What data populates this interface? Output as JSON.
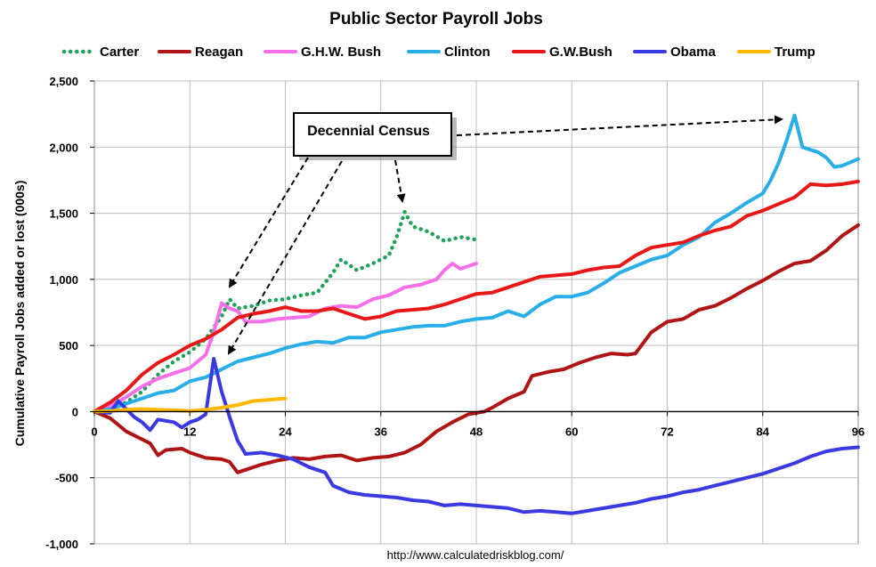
{
  "chart_data": {
    "type": "line",
    "title": "Public Sector Payroll Jobs",
    "ylabel": "Cumulative Payroll Jobs added or lost (000s)",
    "xlabel": "",
    "source": "http://www.calculatedriskblog.com/",
    "xlim": [
      0,
      96
    ],
    "ylim": [
      -1000,
      2500
    ],
    "x_ticks": [
      0,
      12,
      24,
      36,
      48,
      60,
      72,
      84,
      96
    ],
    "y_ticks": [
      -1000,
      -500,
      0,
      500,
      1000,
      1500,
      2000,
      2500
    ],
    "y_tick_labels": [
      "-1,000",
      "-500",
      "0",
      "500",
      "1,000",
      "1,500",
      "2,000",
      "2,500"
    ],
    "grid": true,
    "legend_position": "top",
    "annotation": {
      "text": "Decennial Census"
    },
    "series": [
      {
        "name": "Carter",
        "color": "#1fa35a",
        "style": "dotted",
        "points": [
          [
            0,
            0
          ],
          [
            2,
            20
          ],
          [
            4,
            70
          ],
          [
            6,
            150
          ],
          [
            8,
            280
          ],
          [
            10,
            380
          ],
          [
            12,
            450
          ],
          [
            14,
            550
          ],
          [
            16,
            720
          ],
          [
            17,
            850
          ],
          [
            18,
            780
          ],
          [
            20,
            800
          ],
          [
            22,
            840
          ],
          [
            24,
            850
          ],
          [
            26,
            880
          ],
          [
            28,
            900
          ],
          [
            30,
            1050
          ],
          [
            31,
            1150
          ],
          [
            33,
            1070
          ],
          [
            35,
            1120
          ],
          [
            37,
            1180
          ],
          [
            38,
            1320
          ],
          [
            39,
            1510
          ],
          [
            40,
            1400
          ],
          [
            42,
            1360
          ],
          [
            44,
            1290
          ],
          [
            46,
            1320
          ],
          [
            48,
            1300
          ]
        ]
      },
      {
        "name": "Reagan",
        "color": "#b01515",
        "style": "solid",
        "points": [
          [
            0,
            0
          ],
          [
            2,
            -50
          ],
          [
            4,
            -150
          ],
          [
            6,
            -210
          ],
          [
            7,
            -240
          ],
          [
            8,
            -330
          ],
          [
            9,
            -290
          ],
          [
            11,
            -280
          ],
          [
            12,
            -310
          ],
          [
            14,
            -350
          ],
          [
            16,
            -360
          ],
          [
            17,
            -380
          ],
          [
            18,
            -460
          ],
          [
            19,
            -440
          ],
          [
            21,
            -400
          ],
          [
            23,
            -370
          ],
          [
            25,
            -350
          ],
          [
            27,
            -360
          ],
          [
            29,
            -340
          ],
          [
            31,
            -330
          ],
          [
            33,
            -370
          ],
          [
            35,
            -350
          ],
          [
            37,
            -340
          ],
          [
            39,
            -310
          ],
          [
            41,
            -250
          ],
          [
            43,
            -150
          ],
          [
            45,
            -80
          ],
          [
            47,
            -20
          ],
          [
            49,
            0
          ],
          [
            50,
            30
          ],
          [
            52,
            100
          ],
          [
            54,
            150
          ],
          [
            55,
            270
          ],
          [
            57,
            300
          ],
          [
            59,
            320
          ],
          [
            61,
            370
          ],
          [
            63,
            410
          ],
          [
            65,
            440
          ],
          [
            67,
            430
          ],
          [
            68,
            440
          ],
          [
            69,
            520
          ],
          [
            70,
            600
          ],
          [
            72,
            680
          ],
          [
            74,
            700
          ],
          [
            76,
            770
          ],
          [
            78,
            800
          ],
          [
            80,
            860
          ],
          [
            82,
            930
          ],
          [
            84,
            990
          ],
          [
            86,
            1060
          ],
          [
            88,
            1120
          ],
          [
            90,
            1140
          ],
          [
            92,
            1220
          ],
          [
            94,
            1330
          ],
          [
            96,
            1410
          ]
        ]
      },
      {
        "name": "G.H.W. Bush",
        "color": "#f570e8",
        "style": "solid",
        "points": [
          [
            0,
            0
          ],
          [
            2,
            40
          ],
          [
            4,
            110
          ],
          [
            6,
            190
          ],
          [
            8,
            250
          ],
          [
            10,
            290
          ],
          [
            12,
            330
          ],
          [
            14,
            430
          ],
          [
            15,
            600
          ],
          [
            16,
            820
          ],
          [
            17,
            780
          ],
          [
            18,
            760
          ],
          [
            19,
            680
          ],
          [
            21,
            680
          ],
          [
            23,
            700
          ],
          [
            25,
            710
          ],
          [
            27,
            720
          ],
          [
            29,
            780
          ],
          [
            31,
            800
          ],
          [
            33,
            790
          ],
          [
            35,
            850
          ],
          [
            37,
            880
          ],
          [
            39,
            940
          ],
          [
            41,
            960
          ],
          [
            43,
            1000
          ],
          [
            44,
            1070
          ],
          [
            45,
            1120
          ],
          [
            46,
            1080
          ],
          [
            48,
            1120
          ]
        ]
      },
      {
        "name": "Clinton",
        "color": "#2aaee8",
        "style": "solid",
        "points": [
          [
            0,
            0
          ],
          [
            2,
            20
          ],
          [
            4,
            60
          ],
          [
            6,
            100
          ],
          [
            8,
            140
          ],
          [
            10,
            160
          ],
          [
            12,
            230
          ],
          [
            14,
            260
          ],
          [
            16,
            320
          ],
          [
            18,
            380
          ],
          [
            20,
            410
          ],
          [
            22,
            440
          ],
          [
            24,
            480
          ],
          [
            26,
            510
          ],
          [
            28,
            530
          ],
          [
            30,
            520
          ],
          [
            32,
            560
          ],
          [
            34,
            560
          ],
          [
            36,
            600
          ],
          [
            38,
            620
          ],
          [
            40,
            640
          ],
          [
            42,
            650
          ],
          [
            44,
            650
          ],
          [
            46,
            680
          ],
          [
            48,
            700
          ],
          [
            50,
            710
          ],
          [
            52,
            760
          ],
          [
            54,
            720
          ],
          [
            56,
            810
          ],
          [
            58,
            870
          ],
          [
            60,
            870
          ],
          [
            62,
            900
          ],
          [
            64,
            970
          ],
          [
            66,
            1050
          ],
          [
            68,
            1100
          ],
          [
            70,
            1150
          ],
          [
            72,
            1180
          ],
          [
            74,
            1260
          ],
          [
            76,
            1320
          ],
          [
            78,
            1430
          ],
          [
            80,
            1500
          ],
          [
            82,
            1580
          ],
          [
            84,
            1650
          ],
          [
            85,
            1750
          ],
          [
            86,
            1880
          ],
          [
            87,
            2050
          ],
          [
            88,
            2240
          ],
          [
            89,
            2000
          ],
          [
            91,
            1960
          ],
          [
            92,
            1920
          ],
          [
            93,
            1850
          ],
          [
            94,
            1860
          ],
          [
            96,
            1910
          ]
        ]
      },
      {
        "name": "G.W.Bush",
        "color": "#e81818",
        "style": "solid",
        "points": [
          [
            0,
            0
          ],
          [
            2,
            70
          ],
          [
            4,
            160
          ],
          [
            6,
            280
          ],
          [
            8,
            370
          ],
          [
            10,
            430
          ],
          [
            12,
            500
          ],
          [
            14,
            550
          ],
          [
            16,
            620
          ],
          [
            18,
            710
          ],
          [
            20,
            740
          ],
          [
            22,
            760
          ],
          [
            24,
            790
          ],
          [
            26,
            760
          ],
          [
            28,
            760
          ],
          [
            30,
            780
          ],
          [
            32,
            740
          ],
          [
            34,
            700
          ],
          [
            36,
            720
          ],
          [
            38,
            760
          ],
          [
            40,
            770
          ],
          [
            42,
            780
          ],
          [
            44,
            810
          ],
          [
            46,
            850
          ],
          [
            48,
            890
          ],
          [
            50,
            900
          ],
          [
            52,
            940
          ],
          [
            54,
            980
          ],
          [
            56,
            1020
          ],
          [
            58,
            1030
          ],
          [
            60,
            1040
          ],
          [
            62,
            1070
          ],
          [
            64,
            1090
          ],
          [
            66,
            1100
          ],
          [
            68,
            1180
          ],
          [
            70,
            1240
          ],
          [
            72,
            1260
          ],
          [
            74,
            1280
          ],
          [
            76,
            1330
          ],
          [
            78,
            1370
          ],
          [
            80,
            1400
          ],
          [
            82,
            1480
          ],
          [
            84,
            1520
          ],
          [
            86,
            1570
          ],
          [
            88,
            1620
          ],
          [
            90,
            1720
          ],
          [
            92,
            1710
          ],
          [
            94,
            1720
          ],
          [
            96,
            1740
          ]
        ]
      },
      {
        "name": "Obama",
        "color": "#3a3ae0",
        "style": "solid",
        "points": [
          [
            0,
            0
          ],
          [
            2,
            -10
          ],
          [
            3,
            80
          ],
          [
            4,
            20
          ],
          [
            5,
            -40
          ],
          [
            6,
            -80
          ],
          [
            7,
            -140
          ],
          [
            8,
            -60
          ],
          [
            10,
            -80
          ],
          [
            11,
            -120
          ],
          [
            12,
            -80
          ],
          [
            13,
            -60
          ],
          [
            14,
            -20
          ],
          [
            15,
            400
          ],
          [
            16,
            150
          ],
          [
            17,
            -40
          ],
          [
            18,
            -220
          ],
          [
            19,
            -320
          ],
          [
            21,
            -310
          ],
          [
            23,
            -330
          ],
          [
            25,
            -360
          ],
          [
            27,
            -420
          ],
          [
            29,
            -460
          ],
          [
            30,
            -560
          ],
          [
            32,
            -610
          ],
          [
            34,
            -630
          ],
          [
            36,
            -640
          ],
          [
            38,
            -650
          ],
          [
            40,
            -670
          ],
          [
            42,
            -680
          ],
          [
            44,
            -710
          ],
          [
            46,
            -700
          ],
          [
            48,
            -710
          ],
          [
            50,
            -720
          ],
          [
            52,
            -730
          ],
          [
            54,
            -760
          ],
          [
            56,
            -750
          ],
          [
            58,
            -760
          ],
          [
            60,
            -770
          ],
          [
            62,
            -750
          ],
          [
            64,
            -730
          ],
          [
            66,
            -710
          ],
          [
            68,
            -690
          ],
          [
            70,
            -660
          ],
          [
            72,
            -640
          ],
          [
            74,
            -610
          ],
          [
            76,
            -590
          ],
          [
            78,
            -560
          ],
          [
            80,
            -530
          ],
          [
            82,
            -500
          ],
          [
            84,
            -470
          ],
          [
            86,
            -430
          ],
          [
            88,
            -390
          ],
          [
            90,
            -340
          ],
          [
            92,
            -300
          ],
          [
            94,
            -280
          ],
          [
            96,
            -270
          ]
        ]
      },
      {
        "name": "Trump",
        "color": "#ffb800",
        "style": "solid",
        "points": [
          [
            0,
            0
          ],
          [
            2,
            5
          ],
          [
            4,
            15
          ],
          [
            6,
            20
          ],
          [
            8,
            15
          ],
          [
            10,
            10
          ],
          [
            12,
            5
          ],
          [
            14,
            15
          ],
          [
            16,
            30
          ],
          [
            18,
            50
          ],
          [
            20,
            80
          ],
          [
            22,
            90
          ],
          [
            24,
            100
          ]
        ]
      }
    ]
  }
}
